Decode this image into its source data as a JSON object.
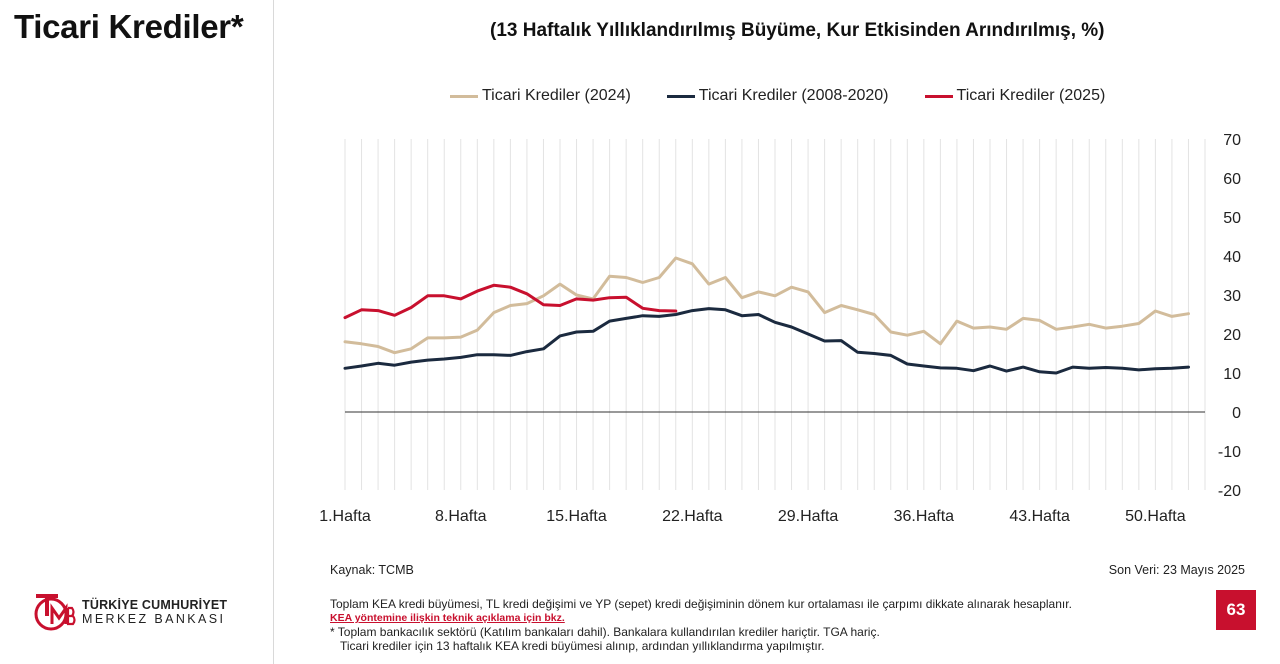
{
  "page": {
    "title": "Ticari Krediler*",
    "number": "63"
  },
  "colors": {
    "series_2024": "#d2bc9b",
    "series_2008_2020": "#1b2a3f",
    "series_2025": "#c8102e",
    "accent": "#c8102e"
  },
  "logo": {
    "line1": "TÜRKİYE CUMHURİYET",
    "line2": "MERKEZ BANKASI"
  },
  "footer": {
    "source": "Kaynak: TCMB",
    "last_data": "Son Veri: 23 Mayıs 2025",
    "note1": "Toplam KEA kredi büyümesi, TL kredi değişimi ve YP (sepet) kredi değişiminin dönem kur ortalaması ile çarpımı dikkate alınarak hesaplanır.",
    "link": "KEA yöntemine ilişkin teknik açıklama için bkz.",
    "note2": "* Toplam bankacılık sektörü (Katılım bankaları dahil). Bankalara kullandırılan krediler hariçtir. TGA hariç.",
    "note3": "Ticari krediler için 13 haftalık KEA kredi büyümesi alınıp, ardından yıllıklandırma yapılmıştır."
  },
  "chart_data": {
    "type": "line",
    "title": "(13 Haftalık Yıllıklandırılmış Büyüme, Kur Etkisinden Arındırılmış, %)",
    "x_tick_labels": [
      "1.Hafta",
      "8.Hafta",
      "15.Hafta",
      "22.Hafta",
      "29.Hafta",
      "36.Hafta",
      "43.Hafta",
      "50.Hafta"
    ],
    "x_tick_weeks": [
      1,
      8,
      15,
      22,
      29,
      36,
      43,
      50
    ],
    "y_ticks": [
      70,
      60,
      50,
      40,
      30,
      20,
      10,
      0,
      -10,
      -20
    ],
    "ylim": [
      -20,
      70
    ],
    "xlim": [
      1,
      53
    ],
    "y_axis_side": "right",
    "grid": "vertical",
    "legend_position": "top",
    "series": [
      {
        "name": "Ticari Krediler (2024)",
        "color": "#d2bc9b",
        "values": [
          18,
          17.5,
          16.8,
          15.2,
          16.2,
          19,
          19,
          19.2,
          21,
          25.5,
          27.3,
          27.8,
          29.8,
          32.8,
          30,
          29,
          34.8,
          34.5,
          33.2,
          34.5,
          39.5,
          38,
          32.8,
          34.5,
          29.3,
          30.8,
          29.8,
          32,
          30.8,
          25.5,
          27.3,
          26.2,
          25,
          20.5,
          19.7,
          20.7,
          17.5,
          23.3,
          21.5,
          21.8,
          21.2,
          24,
          23.5,
          21.2,
          21.8,
          22.5,
          21.5,
          22,
          22.7,
          25.9,
          24.5,
          25.2
        ]
      },
      {
        "name": "Ticari Krediler (2008-2020)",
        "color": "#1b2a3f",
        "values": [
          11.2,
          11.8,
          12.5,
          12,
          12.8,
          13.3,
          13.6,
          14,
          14.7,
          14.7,
          14.5,
          15.5,
          16.2,
          19.5,
          20.5,
          20.7,
          23.3,
          24,
          24.7,
          24.5,
          25,
          26,
          26.5,
          26.2,
          24.7,
          25,
          23,
          21.8,
          20,
          18.2,
          18.3,
          15.3,
          15,
          14.5,
          12.3,
          11.8,
          11.3,
          11.2,
          10.6,
          11.8,
          10.5,
          11.5,
          10.3,
          10,
          11.5,
          11.2,
          11.4,
          11.2,
          10.8,
          11.1,
          11.2,
          11.5
        ]
      },
      {
        "name": "Ticari Krediler (2025)",
        "color": "#c8102e",
        "values": [
          24.2,
          26.2,
          26,
          24.8,
          26.8,
          29.8,
          29.8,
          29,
          31,
          32.5,
          32,
          30.3,
          27.5,
          27.3,
          29,
          28.7,
          29.3,
          29.4,
          26.6,
          26,
          25.9
        ]
      }
    ]
  }
}
